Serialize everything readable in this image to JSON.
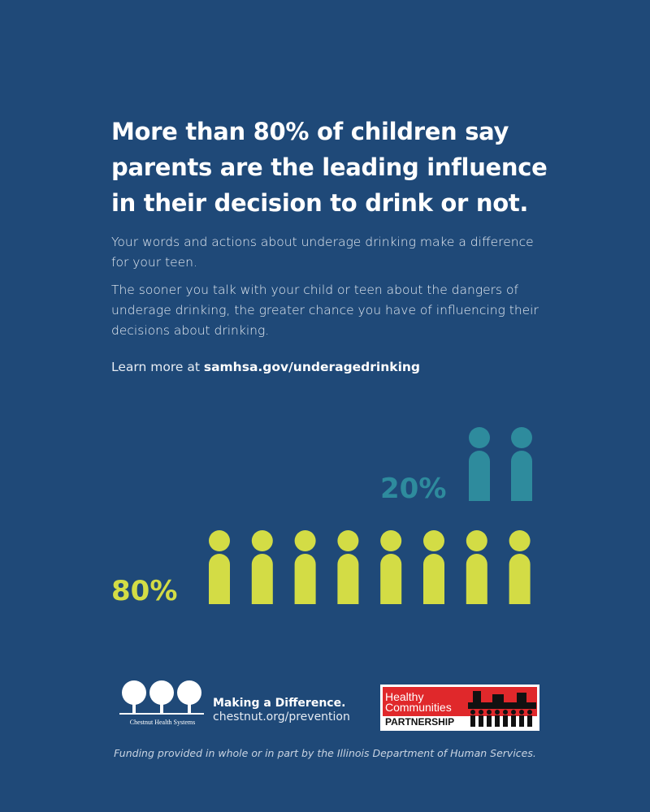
{
  "headline": [
    "More than 80% of children say",
    "parents are the leading influence",
    "in their decision to drink or not."
  ],
  "paragraphs": [
    "Your words and actions about underage drinking make a difference for your teen.",
    "The sooner you talk with your child or teen about the dangers of underage drinking, the greater chance you have of influencing their decisions about drinking."
  ],
  "learn_more": {
    "text": "Learn more at",
    "link": "samhsa.gov/underagedrinking"
  },
  "pictograph": {
    "minority_label": "20%",
    "majority_label": "80%"
  },
  "footer": {
    "chestnut": {
      "logo_text": "Chestnut Health Systems",
      "tagline": "Making a Difference.",
      "url": "chestnut.org/prevention"
    },
    "hcp": {
      "line1": "Healthy",
      "line2": "Communities",
      "line3": "PARTNERSHIP"
    },
    "funding": "Funding provided in whole or in part by the Illinois Department of Human Services."
  }
}
